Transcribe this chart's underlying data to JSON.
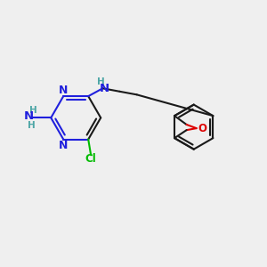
{
  "bg_color": "#efefef",
  "bond_color": "#1a1a1a",
  "N_color": "#2020dd",
  "O_color": "#dd0000",
  "Cl_color": "#00bb00",
  "H_color": "#4da6a6",
  "lw": 1.5,
  "fs": 8.5,
  "fig_size": [
    3.0,
    3.0
  ],
  "dpi": 100,
  "xlim": [
    0,
    10
  ],
  "ylim": [
    0,
    10
  ]
}
